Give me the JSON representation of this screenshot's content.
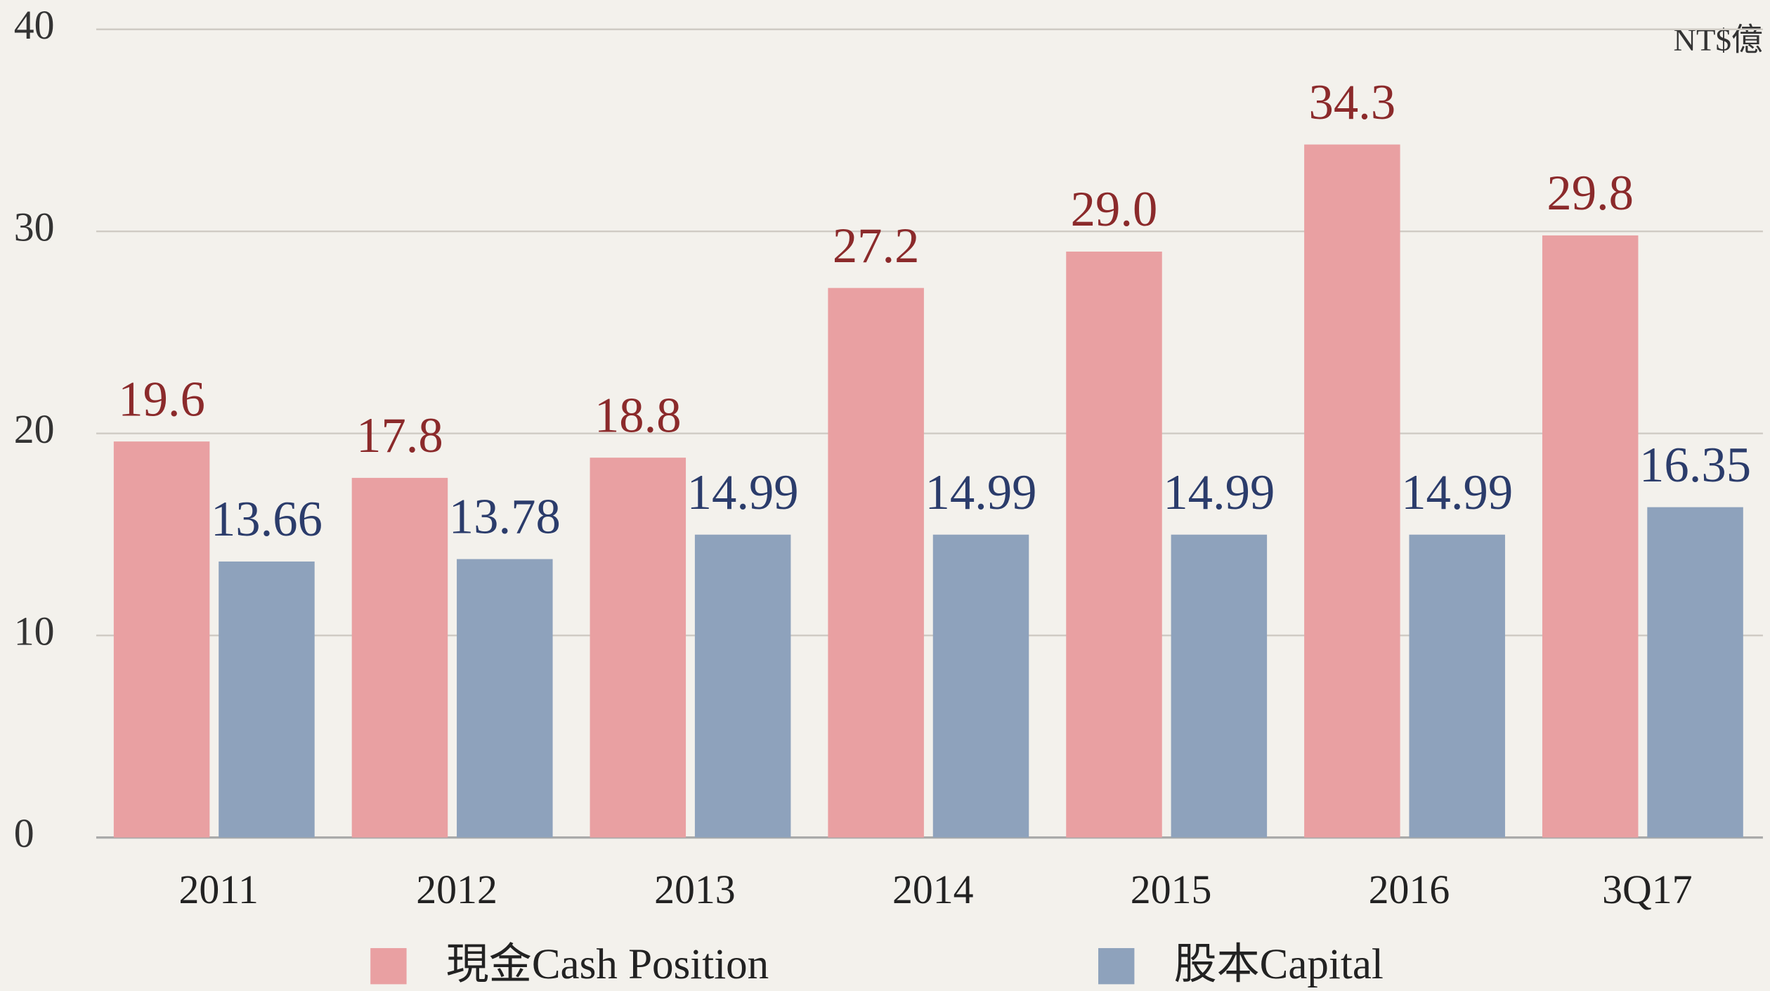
{
  "chart_data": {
    "type": "bar",
    "unit_label": "NT$億",
    "categories": [
      "2011",
      "2012",
      "2013",
      "2014",
      "2015",
      "2016",
      "3Q17"
    ],
    "series": [
      {
        "name": "現金Cash Position",
        "color": "#e9a0a2",
        "label_color": "#8b2a2b",
        "values": [
          19.6,
          17.8,
          18.8,
          27.2,
          29.0,
          34.3,
          29.8
        ],
        "value_labels": [
          "19.6",
          "17.8",
          "18.8",
          "27.2",
          "29.0",
          "34.3",
          "29.8"
        ]
      },
      {
        "name": "股本Capital",
        "color": "#8ea2bc",
        "label_color": "#2b3c6b",
        "values": [
          13.66,
          13.78,
          14.99,
          14.99,
          14.99,
          14.99,
          16.35
        ]
      }
    ],
    "ylim": [
      0,
      40
    ],
    "yticks": [
      0,
      10,
      20,
      30,
      40
    ],
    "grid": true,
    "legend": "bottom"
  }
}
